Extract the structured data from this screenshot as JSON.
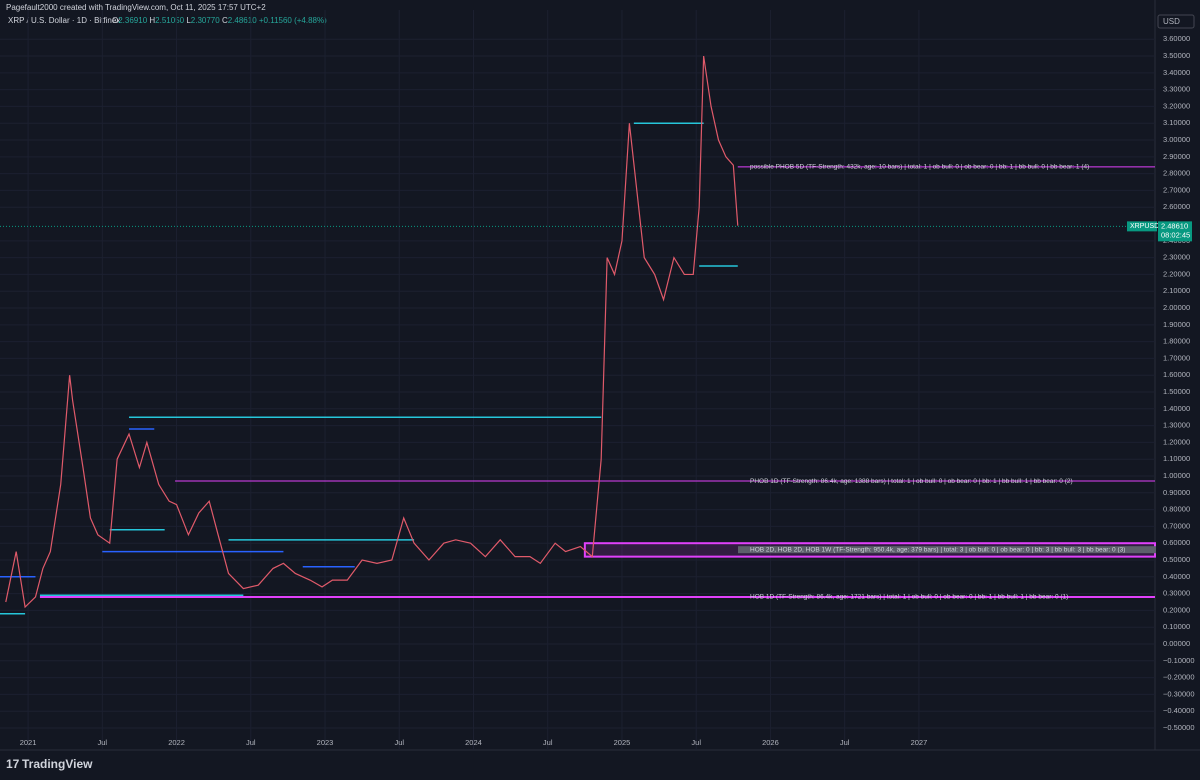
{
  "header": {
    "credit": "Pagefault2000 created with TradingView.com, Oct 11, 2025 17:57 UTC+2",
    "symbol": "XRP / U.S. Dollar · 1D · Bitfinex",
    "ohlc": {
      "o_label": "O",
      "o": "2.36910",
      "h_label": "H",
      "h": "2.51050",
      "l_label": "L",
      "l": "2.30770",
      "c_label": "C",
      "c": "2.48610",
      "change": "+0.11560 (+4.88%)"
    },
    "currency": "USD"
  },
  "price_tag": {
    "ticker": "XRPUSD",
    "price": "2.48610",
    "countdown": "08:02:45",
    "value": 2.4861
  },
  "footer": {
    "brand": "TradingView"
  },
  "chart_data": {
    "type": "line",
    "color": "#e05a6a",
    "x": [
      2020.85,
      2020.92,
      2020.98,
      2021.05,
      2021.1,
      2021.15,
      2021.22,
      2021.28,
      2021.3,
      2021.37,
      2021.42,
      2021.47,
      2021.55,
      2021.6,
      2021.68,
      2021.75,
      2021.8,
      2021.88,
      2021.95,
      2022.0,
      2022.08,
      2022.15,
      2022.22,
      2022.28,
      2022.35,
      2022.45,
      2022.55,
      2022.65,
      2022.72,
      2022.8,
      2022.9,
      2022.98,
      2023.05,
      2023.15,
      2023.25,
      2023.35,
      2023.45,
      2023.53,
      2023.6,
      2023.7,
      2023.8,
      2023.88,
      2023.98,
      2024.08,
      2024.18,
      2024.28,
      2024.38,
      2024.45,
      2024.55,
      2024.62,
      2024.72,
      2024.8,
      2024.86,
      2024.9,
      2024.95,
      2025.0,
      2025.05,
      2025.1,
      2025.15,
      2025.22,
      2025.28,
      2025.35,
      2025.42,
      2025.48,
      2025.52,
      2025.55,
      2025.6,
      2025.65,
      2025.7,
      2025.75,
      2025.78
    ],
    "values": [
      0.25,
      0.55,
      0.22,
      0.28,
      0.45,
      0.55,
      0.95,
      1.6,
      1.45,
      1.05,
      0.75,
      0.65,
      0.6,
      1.1,
      1.25,
      1.05,
      1.2,
      0.95,
      0.85,
      0.83,
      0.65,
      0.78,
      0.85,
      0.65,
      0.42,
      0.33,
      0.35,
      0.45,
      0.48,
      0.42,
      0.38,
      0.34,
      0.38,
      0.38,
      0.5,
      0.48,
      0.5,
      0.75,
      0.6,
      0.5,
      0.6,
      0.62,
      0.6,
      0.52,
      0.62,
      0.52,
      0.52,
      0.48,
      0.6,
      0.55,
      0.58,
      0.52,
      1.1,
      2.3,
      2.2,
      2.4,
      3.1,
      2.7,
      2.3,
      2.2,
      2.05,
      2.3,
      2.2,
      2.2,
      2.6,
      3.5,
      3.2,
      3.0,
      2.9,
      2.85,
      2.49
    ],
    "xlim": [
      2020.811,
      2028.59
    ],
    "xticks": [
      {
        "value": 2021,
        "label": "2021"
      },
      {
        "value": 2021.5,
        "label": "Jul"
      },
      {
        "value": 2022,
        "label": "2022"
      },
      {
        "value": 2022.5,
        "label": "Jul"
      },
      {
        "value": 2023,
        "label": "2023"
      },
      {
        "value": 2023.5,
        "label": "Jul"
      },
      {
        "value": 2024,
        "label": "2024"
      },
      {
        "value": 2024.5,
        "label": "Jul"
      },
      {
        "value": 2025,
        "label": "2025"
      },
      {
        "value": 2025.5,
        "label": "Jul"
      },
      {
        "value": 2026,
        "label": "2026"
      },
      {
        "value": 2026.5,
        "label": "Jul"
      },
      {
        "value": 2027,
        "label": "2027"
      }
    ],
    "ylim": [
      -0.631,
      3.774
    ],
    "yticks": [
      {
        "value": 3.6,
        "label": "3.60000"
      },
      {
        "value": 3.5,
        "label": "3.50000"
      },
      {
        "value": 3.4,
        "label": "3.40000"
      },
      {
        "value": 3.3,
        "label": "3.30000"
      },
      {
        "value": 3.2,
        "label": "3.20000"
      },
      {
        "value": 3.1,
        "label": "3.10000"
      },
      {
        "value": 3.0,
        "label": "3.00000"
      },
      {
        "value": 2.9,
        "label": "2.90000"
      },
      {
        "value": 2.8,
        "label": "2.80000"
      },
      {
        "value": 2.7,
        "label": "2.70000"
      },
      {
        "value": 2.6,
        "label": "2.60000"
      },
      {
        "value": 2.4,
        "label": "2.40000"
      },
      {
        "value": 2.3,
        "label": "2.30000"
      },
      {
        "value": 2.2,
        "label": "2.20000"
      },
      {
        "value": 2.1,
        "label": "2.10000"
      },
      {
        "value": 2.0,
        "label": "2.00000"
      },
      {
        "value": 1.9,
        "label": "1.90000"
      },
      {
        "value": 1.8,
        "label": "1.80000"
      },
      {
        "value": 1.7,
        "label": "1.70000"
      },
      {
        "value": 1.6,
        "label": "1.60000"
      },
      {
        "value": 1.5,
        "label": "1.50000"
      },
      {
        "value": 1.4,
        "label": "1.40000"
      },
      {
        "value": 1.3,
        "label": "1.30000"
      },
      {
        "value": 1.2,
        "label": "1.20000"
      },
      {
        "value": 1.1,
        "label": "1.10000"
      },
      {
        "value": 1.0,
        "label": "1.00000"
      },
      {
        "value": 0.9,
        "label": "0.90000"
      },
      {
        "value": 0.8,
        "label": "0.80000"
      },
      {
        "value": 0.7,
        "label": "0.70000"
      },
      {
        "value": 0.6,
        "label": "0.60000"
      },
      {
        "value": 0.5,
        "label": "0.50000"
      },
      {
        "value": 0.4,
        "label": "0.40000"
      },
      {
        "value": 0.3,
        "label": "0.30000"
      },
      {
        "value": 0.2,
        "label": "0.20000"
      },
      {
        "value": 0.1,
        "label": "0.10000"
      },
      {
        "value": 0,
        "label": "0.00000"
      },
      {
        "value": -0.1,
        "label": "−0.10000"
      },
      {
        "value": -0.2,
        "label": "−0.20000"
      },
      {
        "value": -0.3,
        "label": "−0.30000"
      },
      {
        "value": -0.4,
        "label": "−0.40000"
      },
      {
        "value": -0.5,
        "label": "−0.50000"
      }
    ],
    "levels": [
      {
        "price": 1.35,
        "from": 2021.68,
        "to": 2024.86,
        "color": "#26c6da"
      },
      {
        "price": 0.62,
        "from": 2022.35,
        "to": 2023.6,
        "color": "#26c6da"
      },
      {
        "price": 0.29,
        "from": 2021.08,
        "to": 2022.45,
        "color": "#26c6da"
      },
      {
        "price": 3.1,
        "from": 2025.08,
        "to": 2025.55,
        "color": "#26c6da"
      },
      {
        "price": 2.25,
        "from": 2025.52,
        "to": 2025.78,
        "color": "#26c6da"
      },
      {
        "price": 0.68,
        "from": 2021.55,
        "to": 2021.92,
        "color": "#26c6da"
      },
      {
        "price": 0.4,
        "from": 2020.811,
        "to": 2021.05,
        "color": "#2962ff"
      },
      {
        "price": 0.18,
        "from": 2020.811,
        "to": 2020.98,
        "color": "#26c6da"
      },
      {
        "price": 1.28,
        "from": 2021.68,
        "to": 2021.85,
        "color": "#2962ff"
      },
      {
        "price": 0.55,
        "from": 2021.5,
        "to": 2022.72,
        "color": "#2962ff"
      },
      {
        "price": 0.46,
        "from": 2022.85,
        "to": 2023.2,
        "color": "#2962ff"
      }
    ],
    "zones": [
      {
        "label": "possible PHOB 5D (TF-Strength: 432k, age: 10 bars) | total: 1 | ob bull: 0 | ob bear: 0 | bb: 1 | bb bull: 0 | bb bear: 1 (4)",
        "low": 2.84,
        "high": 2.84,
        "start": 2025.78
      },
      {
        "label": "PHOB 1D (TF-Strength: 86.4k, age: 1388 bars) | total: 1 | ob bull: 0 | ob bear: 0 | bb: 1 | bb bull: 1 | bb bear: 0 (2)",
        "low": 0.97,
        "high": 0.97,
        "start": 2021.99
      },
      {
        "label": "HOB 2D, HOB 2D, HOB 1W (TF-Strength: 950.4k, age: 379 bars) | total: 3 | ob bull: 0 | ob bear: 0 | bb: 3 | bb bull: 3 | bb bear: 0 (3)",
        "low": 0.52,
        "high": 0.6,
        "start": 2024.75
      },
      {
        "label": "HOB 1D (TF-Strength: 86.4k, age: 1721 bars) | total: 1 | ob bull: 0 | ob bear: 0 | bb: 1 | bb bull: 1 | bb bear: 0 (1)",
        "low": 0.28,
        "high": 0.28,
        "start": 2021.08
      }
    ]
  }
}
